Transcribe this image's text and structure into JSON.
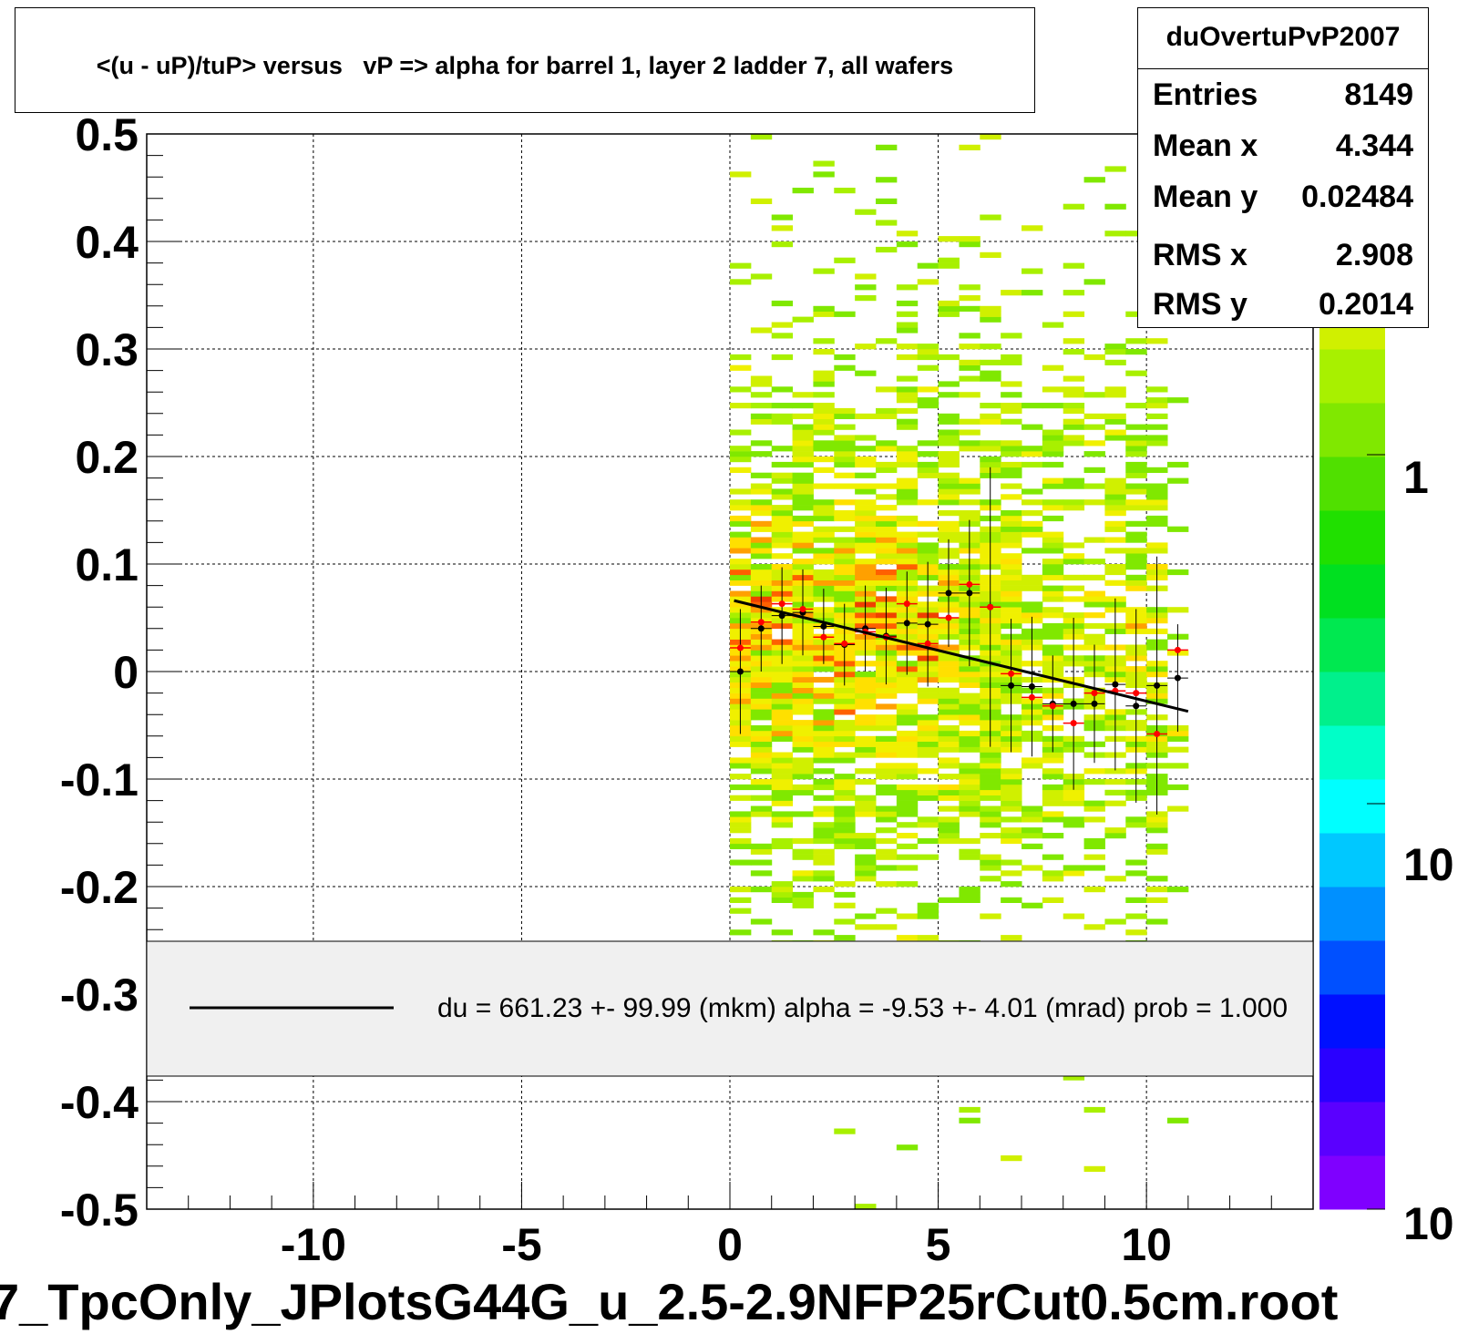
{
  "title": "<(u - uP)/tuP> versus   vP => alpha for barrel 1, layer 2 ladder 7, all wafers",
  "stats": {
    "name": "duOvertuPvP2007",
    "rows": [
      {
        "label": "Entries",
        "value": "8149"
      },
      {
        "label": "Mean x",
        "value": "4.344"
      },
      {
        "label": "Mean y",
        "value": "0.02484"
      },
      {
        "label": "RMS x",
        "value": "2.908"
      },
      {
        "label": "RMS y",
        "value": "0.2014"
      }
    ]
  },
  "legend": {
    "fit_label": "du =  661.23 +- 99.99 (mkm) alpha =   -9.53 +-  4.01 (mrad) prob = 1.000"
  },
  "filename": "7_TpcOnly_JPlotsG44G_u_2.5-2.9NFP25rCut0.5cm.root",
  "palette_labels": [
    "1",
    "10",
    "10"
  ],
  "colors": {
    "fit_line": "#000000",
    "profile_black": "#000000",
    "profile_red": "#ff0000",
    "palette": [
      "#7f00ff",
      "#5a00ff",
      "#2a00ff",
      "#0010ff",
      "#0050ff",
      "#0090ff",
      "#00c8ff",
      "#00ffff",
      "#00ffc8",
      "#00f08c",
      "#00e850",
      "#00e020",
      "#20e000",
      "#50e000",
      "#80e800",
      "#a8f000",
      "#d0f000",
      "#f0f000",
      "#ffe000",
      "#ffa000"
    ]
  },
  "chart_data": {
    "type": "heatmap",
    "title": "<(u - uP)/tuP> versus   vP => alpha for barrel 1, layer 2 ladder 7, all wafers",
    "xlim": [
      -14,
      14
    ],
    "ylim": [
      -0.5,
      0.5
    ],
    "x_ticks": [
      -10,
      -5,
      0,
      5,
      10
    ],
    "y_ticks": [
      0.5,
      0.4,
      0.3,
      0.2,
      0.1,
      0,
      -0.1,
      -0.2,
      -0.3,
      -0.4,
      -0.5
    ],
    "x_tick_labels": [
      "-10",
      "-5",
      "0",
      "5",
      "10"
    ],
    "y_tick_labels": [
      "0.5",
      "0.4",
      "0.3",
      "0.2",
      "0.1",
      "0",
      "-0.1",
      "-0.2",
      "-0.3",
      "-0.4",
      "-0.5"
    ],
    "grid": true,
    "z_scale": "log",
    "heat_x_range": [
      0,
      11
    ],
    "profile_black": {
      "x": [
        0.25,
        0.75,
        1.25,
        1.75,
        2.25,
        2.75,
        3.25,
        3.75,
        4.25,
        4.75,
        5.25,
        5.75,
        6.25,
        6.75,
        7.25,
        7.75,
        8.25,
        8.75,
        9.25,
        9.75,
        10.25,
        10.75
      ],
      "y": [
        0.0,
        0.04,
        0.052,
        0.055,
        0.042,
        0.025,
        0.04,
        0.033,
        0.045,
        0.044,
        0.073,
        0.073,
        0.06,
        -0.013,
        -0.014,
        -0.03,
        -0.03,
        -0.03,
        -0.012,
        -0.032,
        -0.013,
        -0.006
      ],
      "err": [
        0.058,
        0.04,
        0.045,
        0.04,
        0.035,
        0.038,
        0.04,
        0.045,
        0.048,
        0.058,
        0.05,
        0.068,
        0.13,
        0.062,
        0.065,
        0.045,
        0.08,
        0.055,
        0.08,
        0.09,
        0.12,
        0.05
      ]
    },
    "profile_red": {
      "x": [
        0.25,
        0.75,
        1.25,
        1.75,
        2.25,
        2.75,
        3.25,
        3.75,
        4.25,
        4.75,
        5.25,
        5.75,
        6.25,
        6.75,
        7.25,
        7.75,
        8.25,
        8.75,
        9.25,
        9.75,
        10.25,
        10.75
      ],
      "y": [
        0.022,
        0.046,
        0.063,
        0.058,
        0.032,
        0.026,
        0.037,
        0.032,
        0.063,
        0.026,
        0.05,
        0.081,
        0.06,
        -0.002,
        -0.024,
        -0.032,
        -0.048,
        -0.02,
        -0.018,
        -0.02,
        -0.058,
        0.02
      ]
    },
    "fit": {
      "x": [
        0.1,
        11.0
      ],
      "y": [
        0.066,
        -0.037
      ]
    }
  }
}
